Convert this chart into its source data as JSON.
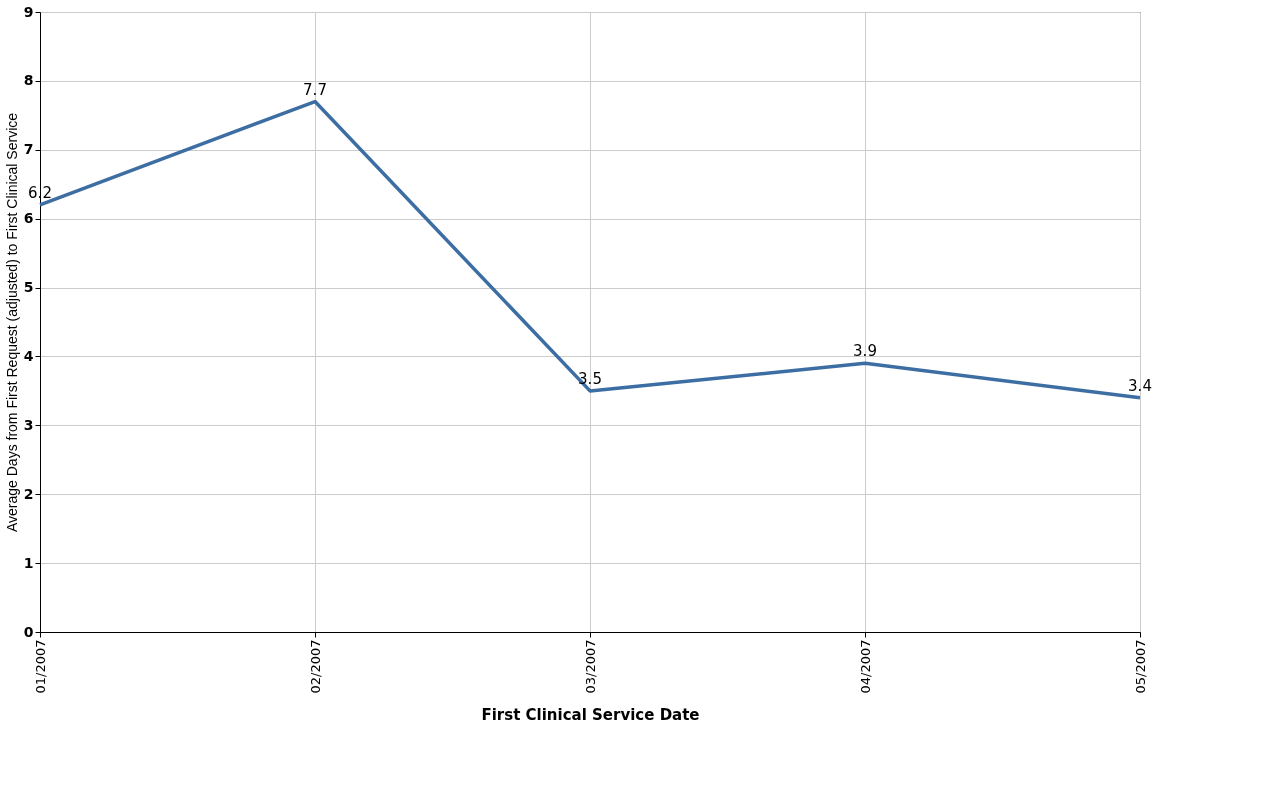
{
  "chart_data": {
    "type": "line",
    "xlabel": "First Clinical Service Date",
    "ylabel": "Average Days from First Request (adjusted) to First Clinical Service",
    "categories": [
      "01/2007",
      "02/2007",
      "03/2007",
      "04/2007",
      "05/2007"
    ],
    "series": [
      {
        "color": "#3d6ea3",
        "values": [
          6.2,
          7.7,
          3.5,
          3.9,
          3.4
        ]
      }
    ],
    "ylim": [
      0,
      9
    ],
    "yticks": [
      0,
      1,
      2,
      3,
      4,
      5,
      6,
      7,
      8,
      9
    ],
    "grid": true,
    "data_labels": true,
    "marker": "none",
    "line_style": "solid"
  }
}
